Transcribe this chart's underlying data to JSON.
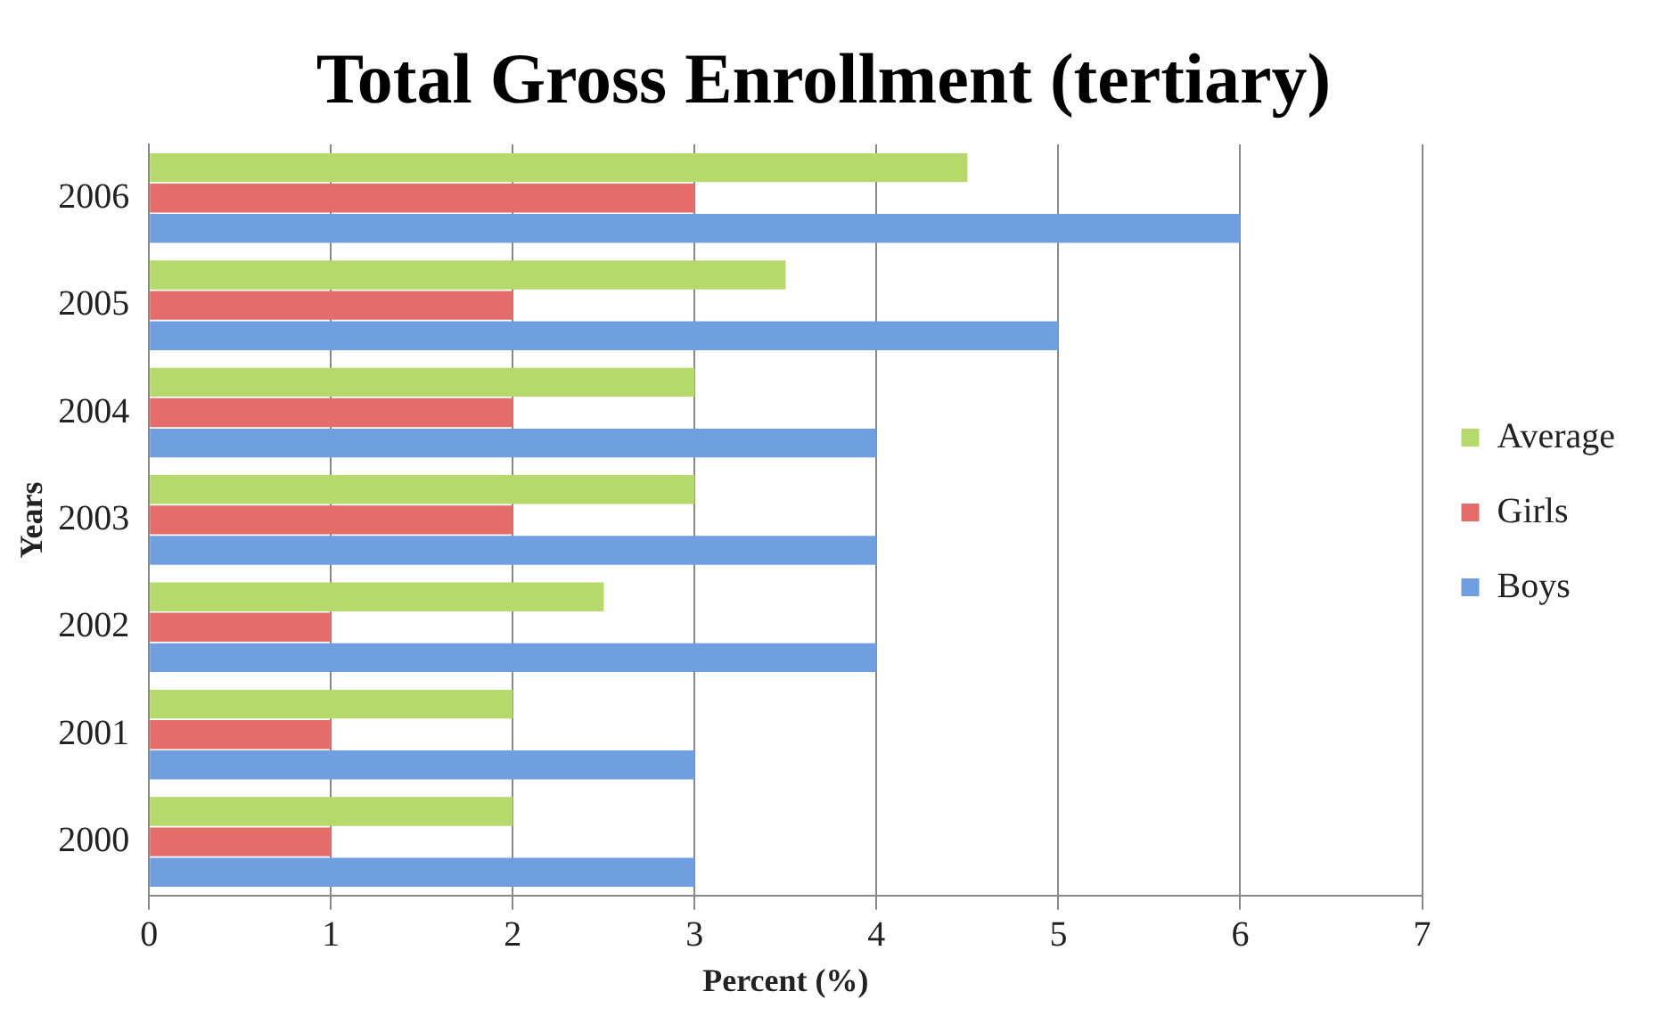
{
  "chart_data": {
    "type": "bar",
    "orientation": "horizontal",
    "title": "Total Gross Enrollment (tertiary)",
    "xlabel": "Percent (%)",
    "ylabel": "Years",
    "categories": [
      "2006",
      "2005",
      "2004",
      "2003",
      "2002",
      "2001",
      "2000"
    ],
    "series": [
      {
        "name": "Average",
        "color": "#b5d96a",
        "values": [
          4.5,
          3.5,
          3,
          3,
          2.5,
          2,
          2
        ]
      },
      {
        "name": "Girls",
        "color": "#e46c6a",
        "values": [
          3,
          2,
          2,
          2,
          1,
          1,
          1
        ]
      },
      {
        "name": "Boys",
        "color": "#6f9fe0",
        "values": [
          6,
          5,
          4,
          4,
          4,
          3,
          3
        ]
      }
    ],
    "xlim": [
      0,
      7
    ],
    "xticks": [
      0,
      1,
      2,
      3,
      4,
      5,
      6,
      7
    ],
    "grid": "x",
    "legend": "right"
  }
}
